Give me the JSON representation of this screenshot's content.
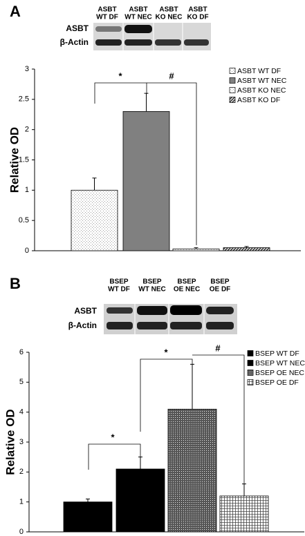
{
  "chart_data": [
    {
      "type": "bar",
      "panel_label": "A",
      "blot": {
        "lanes": [
          [
            "ASBT",
            "WT DF"
          ],
          [
            "ASBT",
            "WT NEC"
          ],
          [
            "ASBT",
            "KO NEC"
          ],
          [
            "ASBT",
            "KO DF"
          ]
        ],
        "rows": [
          "ASBT",
          "β-Actin"
        ]
      },
      "y_label": "Relative OD",
      "ylim": [
        0,
        3
      ],
      "yticks": [
        0,
        0.5,
        1,
        1.5,
        2,
        2.5,
        3
      ],
      "annotations": [
        "*",
        "#"
      ],
      "series": [
        {
          "name": "ASBT WT DF",
          "color": "#9a9a9a",
          "pattern": "dots",
          "values": [
            1
          ],
          "errors": [
            0.2
          ]
        },
        {
          "name": "ASBT WT NEC",
          "color": "#808080",
          "pattern": "solid",
          "values": [
            2.3
          ],
          "errors": [
            0.3
          ]
        },
        {
          "name": "ASBT KO NEC",
          "color": "#b0b0b0",
          "pattern": "dots",
          "values": [
            0.03
          ],
          "errors": [
            0.02
          ]
        },
        {
          "name": "ASBT KO DF",
          "color": "#333333",
          "pattern": "hatch",
          "values": [
            0.05
          ],
          "errors": [
            0.02
          ]
        }
      ]
    },
    {
      "type": "bar",
      "panel_label": "B",
      "blot": {
        "lanes": [
          [
            "BSEP",
            "WT DF"
          ],
          [
            "BSEP",
            "WT NEC"
          ],
          [
            "BSEP",
            "OE NEC"
          ],
          [
            "BSEP",
            "OE DF"
          ]
        ],
        "rows": [
          "ASBT",
          "β-Actin"
        ]
      },
      "y_label": "Relative OD",
      "ylim": [
        0,
        6
      ],
      "yticks": [
        0,
        1,
        2,
        3,
        4,
        5,
        6
      ],
      "annotations": [
        "*",
        "*",
        "#"
      ],
      "series": [
        {
          "name": "BSEP WT DF",
          "color": "#000000",
          "pattern": "solid",
          "values": [
            1
          ],
          "errors": [
            0.1
          ]
        },
        {
          "name": "BSEP WT NEC",
          "color": "#000000",
          "pattern": "solid",
          "values": [
            2.1
          ],
          "errors": [
            0.4
          ]
        },
        {
          "name": "BSEP OE NEC",
          "color": "#555555",
          "pattern": "checker",
          "values": [
            4.1
          ],
          "errors": [
            1.5
          ]
        },
        {
          "name": "BSEP OE DF",
          "color": "#444444",
          "pattern": "grid",
          "values": [
            1.2
          ],
          "errors": [
            0.4
          ]
        }
      ]
    }
  ]
}
